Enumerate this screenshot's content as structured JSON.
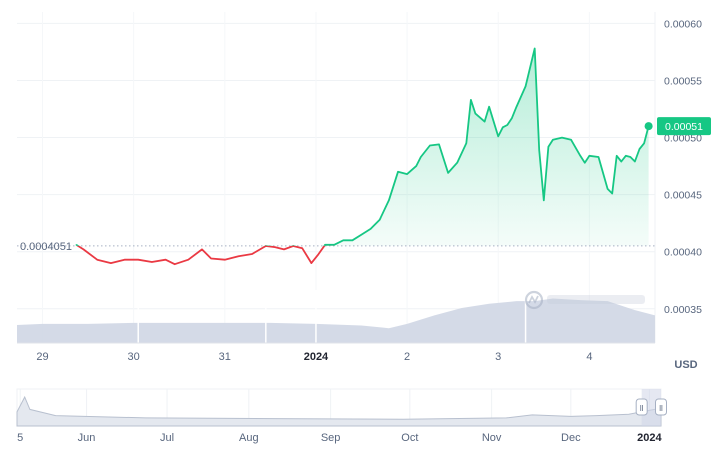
{
  "chart_data": {
    "type": "line",
    "currency_label": "USD",
    "baseline": {
      "value": 0.0004051,
      "label": "0.0004051"
    },
    "last_price": {
      "value": 0.00051,
      "label": "0.00051"
    },
    "y_axis": {
      "min": 0.00032,
      "max": 0.00061,
      "ticks": [
        "0.00035",
        "0.00040",
        "0.00045",
        "0.00050",
        "0.00055",
        "0.00060"
      ]
    },
    "x_ticks": [
      {
        "label": "29",
        "x": 29,
        "bold": false
      },
      {
        "label": "30",
        "x": 30,
        "bold": false
      },
      {
        "label": "31",
        "x": 31,
        "bold": false
      },
      {
        "label": "2024",
        "x": 32,
        "bold": true
      },
      {
        "label": "2",
        "x": 33,
        "bold": false
      },
      {
        "label": "3",
        "x": 34,
        "bold": false
      },
      {
        "label": "4",
        "x": 35,
        "bold": false
      }
    ],
    "x_range": [
      28.72,
      35.72
    ],
    "series": [
      {
        "x": [
          29.37,
          29.45,
          29.6,
          29.75,
          29.9,
          30.05,
          30.2,
          30.35,
          30.45,
          30.6,
          30.75,
          30.85,
          31.0,
          31.15,
          31.3,
          31.45,
          31.55,
          31.65,
          31.75,
          31.85,
          31.95,
          32.02,
          32.1,
          32.2,
          32.3,
          32.4,
          32.5,
          32.6,
          32.7,
          32.8,
          32.9,
          33.0,
          33.1,
          33.15,
          33.25,
          33.35,
          33.45,
          33.55,
          33.65,
          33.7,
          33.75,
          33.85,
          33.9,
          34.0,
          34.05,
          34.1,
          34.15,
          34.2,
          34.3,
          34.4,
          34.45,
          34.5,
          34.55,
          34.6,
          34.7,
          34.8,
          34.9,
          34.95,
          35.0,
          35.1,
          35.2,
          35.25,
          35.3,
          35.35,
          35.4,
          35.45,
          35.5,
          35.55,
          35.6,
          35.65
        ],
        "y": [
          0.000406,
          0.000402,
          0.000393,
          0.00039,
          0.000393,
          0.000393,
          0.000391,
          0.000393,
          0.000389,
          0.000393,
          0.000402,
          0.000394,
          0.000393,
          0.000396,
          0.000398,
          0.000405,
          0.000404,
          0.000402,
          0.000405,
          0.000403,
          0.00039,
          0.000397,
          0.000406,
          0.000406,
          0.00041,
          0.00041,
          0.000415,
          0.00042,
          0.000428,
          0.000445,
          0.00047,
          0.000468,
          0.000475,
          0.000483,
          0.000493,
          0.000494,
          0.000469,
          0.000478,
          0.000495,
          0.000533,
          0.000521,
          0.000514,
          0.000527,
          0.000501,
          0.000509,
          0.000511,
          0.000517,
          0.000527,
          0.000545,
          0.000578,
          0.000489,
          0.000445,
          0.000492,
          0.000498,
          0.0005,
          0.000498,
          0.000484,
          0.000478,
          0.000484,
          0.000483,
          0.000455,
          0.000451,
          0.000484,
          0.000479,
          0.000484,
          0.000483,
          0.000479,
          0.00049,
          0.000495,
          0.00051
        ]
      }
    ],
    "volume": {
      "x": [
        28.72,
        29.0,
        29.5,
        30.0,
        30.5,
        31.0,
        31.5,
        32.0,
        32.5,
        32.8,
        33.0,
        33.3,
        33.6,
        33.9,
        34.2,
        34.4,
        34.6,
        34.9,
        35.2,
        35.5,
        35.72
      ],
      "y": [
        0.34,
        0.36,
        0.36,
        0.38,
        0.38,
        0.38,
        0.38,
        0.36,
        0.33,
        0.28,
        0.36,
        0.52,
        0.66,
        0.74,
        0.79,
        0.79,
        0.84,
        0.81,
        0.79,
        0.62,
        0.52
      ]
    },
    "navigator": {
      "x_ticks": [
        {
          "label": "5",
          "pos": 0.005,
          "bold": false
        },
        {
          "label": "Jun",
          "pos": 0.108,
          "bold": false
        },
        {
          "label": "Jul",
          "pos": 0.233,
          "bold": false
        },
        {
          "label": "Aug",
          "pos": 0.36,
          "bold": false
        },
        {
          "label": "Sep",
          "pos": 0.487,
          "bold": false
        },
        {
          "label": "Oct",
          "pos": 0.61,
          "bold": false
        },
        {
          "label": "Nov",
          "pos": 0.737,
          "bold": false
        },
        {
          "label": "Dec",
          "pos": 0.86,
          "bold": false
        },
        {
          "label": "2024",
          "pos": 0.982,
          "bold": true
        }
      ],
      "selection": [
        0.97,
        1.0
      ]
    },
    "colors": {
      "up": "#16c784",
      "down": "#ea3943",
      "volume": "#cfd6e4",
      "grid": "#eff2f5"
    }
  }
}
